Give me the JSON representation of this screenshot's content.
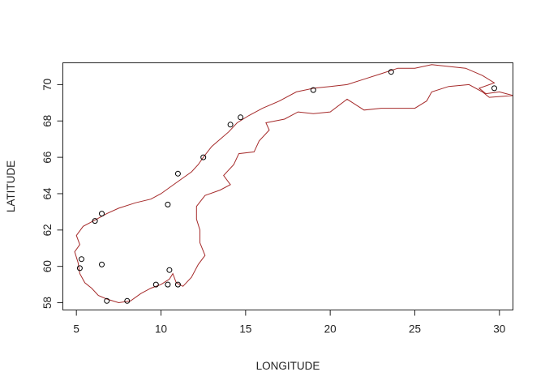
{
  "chart_data": {
    "type": "scatter",
    "title": "",
    "xlabel": "LONGITUDE",
    "ylabel": "LATITUDE",
    "xlim": [
      4.2,
      30.8
    ],
    "ylim": [
      57.6,
      71.2
    ],
    "x_ticks": [
      5,
      10,
      15,
      20,
      25,
      30
    ],
    "y_ticks": [
      58,
      60,
      62,
      64,
      66,
      68,
      70
    ],
    "grid": false,
    "colors": {
      "coastline": "#a52a2a",
      "points": "#000000",
      "axes": "#222222"
    },
    "points": [
      {
        "x": 5.2,
        "y": 59.9
      },
      {
        "x": 5.3,
        "y": 60.4
      },
      {
        "x": 6.1,
        "y": 62.5
      },
      {
        "x": 6.5,
        "y": 62.9
      },
      {
        "x": 6.5,
        "y": 60.1
      },
      {
        "x": 6.8,
        "y": 58.1
      },
      {
        "x": 8.0,
        "y": 58.1
      },
      {
        "x": 9.7,
        "y": 59.0
      },
      {
        "x": 10.4,
        "y": 59.0
      },
      {
        "x": 10.5,
        "y": 59.8
      },
      {
        "x": 11.0,
        "y": 59.0
      },
      {
        "x": 10.4,
        "y": 63.4
      },
      {
        "x": 11.0,
        "y": 65.1
      },
      {
        "x": 12.5,
        "y": 66.0
      },
      {
        "x": 14.1,
        "y": 67.8
      },
      {
        "x": 14.7,
        "y": 68.2
      },
      {
        "x": 19.0,
        "y": 69.7
      },
      {
        "x": 23.6,
        "y": 70.7
      },
      {
        "x": 29.7,
        "y": 69.8
      }
    ],
    "coastline": [
      [
        30.8,
        69.4
      ],
      [
        30.0,
        69.6
      ],
      [
        29.2,
        69.5
      ],
      [
        28.8,
        69.8
      ],
      [
        29.7,
        70.1
      ],
      [
        29.0,
        70.5
      ],
      [
        28.0,
        70.9
      ],
      [
        27.0,
        71.0
      ],
      [
        26.0,
        71.1
      ],
      [
        25.0,
        70.9
      ],
      [
        24.0,
        70.9
      ],
      [
        23.0,
        70.6
      ],
      [
        22.0,
        70.3
      ],
      [
        21.0,
        70.0
      ],
      [
        20.0,
        69.9
      ],
      [
        19.0,
        69.8
      ],
      [
        18.0,
        69.6
      ],
      [
        17.0,
        69.1
      ],
      [
        16.0,
        68.7
      ],
      [
        15.2,
        68.3
      ],
      [
        14.5,
        67.9
      ],
      [
        14.0,
        67.4
      ],
      [
        13.5,
        67.0
      ],
      [
        13.0,
        66.6
      ],
      [
        12.5,
        66.0
      ],
      [
        12.2,
        65.6
      ],
      [
        11.8,
        65.2
      ],
      [
        11.2,
        64.8
      ],
      [
        10.6,
        64.4
      ],
      [
        10.0,
        64.0
      ],
      [
        9.4,
        63.7
      ],
      [
        8.5,
        63.5
      ],
      [
        7.5,
        63.2
      ],
      [
        6.8,
        62.9
      ],
      [
        6.2,
        62.6
      ],
      [
        5.4,
        62.2
      ],
      [
        5.0,
        61.7
      ],
      [
        5.2,
        61.2
      ],
      [
        4.9,
        60.8
      ],
      [
        5.1,
        60.2
      ],
      [
        5.2,
        59.6
      ],
      [
        5.5,
        59.1
      ],
      [
        5.9,
        58.8
      ],
      [
        6.3,
        58.4
      ],
      [
        6.8,
        58.2
      ],
      [
        7.5,
        58.0
      ],
      [
        8.2,
        58.1
      ],
      [
        8.8,
        58.5
      ],
      [
        9.4,
        58.8
      ],
      [
        10.0,
        59.0
      ],
      [
        10.5,
        59.3
      ],
      [
        10.7,
        59.6
      ],
      [
        10.9,
        59.1
      ],
      [
        11.3,
        58.9
      ],
      [
        11.8,
        59.4
      ],
      [
        12.2,
        60.1
      ],
      [
        12.6,
        60.6
      ],
      [
        12.3,
        61.3
      ],
      [
        12.3,
        62.0
      ],
      [
        12.1,
        62.6
      ],
      [
        12.1,
        63.3
      ],
      [
        12.6,
        63.9
      ],
      [
        13.5,
        64.2
      ],
      [
        14.1,
        64.5
      ],
      [
        13.7,
        65.0
      ],
      [
        14.3,
        65.6
      ],
      [
        14.6,
        66.2
      ],
      [
        15.5,
        66.3
      ],
      [
        15.8,
        66.9
      ],
      [
        16.4,
        67.5
      ],
      [
        16.2,
        67.9
      ],
      [
        17.3,
        68.1
      ],
      [
        18.1,
        68.5
      ],
      [
        19.0,
        68.4
      ],
      [
        20.0,
        68.5
      ],
      [
        21.0,
        69.2
      ],
      [
        22.0,
        68.6
      ],
      [
        23.0,
        68.7
      ],
      [
        24.0,
        68.7
      ],
      [
        25.0,
        68.7
      ],
      [
        25.7,
        69.1
      ],
      [
        26.0,
        69.6
      ],
      [
        27.0,
        69.9
      ],
      [
        28.2,
        70.0
      ],
      [
        29.0,
        69.6
      ],
      [
        29.4,
        69.3
      ],
      [
        30.8,
        69.4
      ]
    ]
  }
}
